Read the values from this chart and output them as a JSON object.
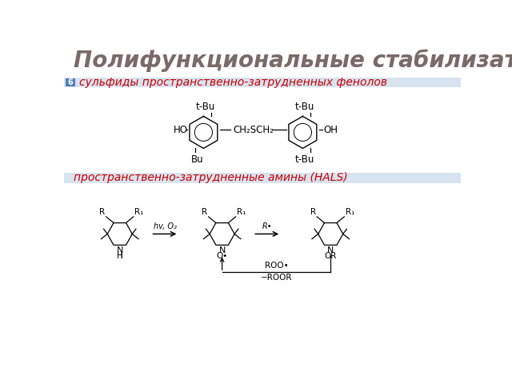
{
  "title": "Полифункциональные стабилизаторы",
  "title_color": "#7a6a6a",
  "title_fontsize": 20,
  "title_style": "italic",
  "subtitle1": "сульфиды пространственно-затрудненных фенолов",
  "subtitle1_color": "#cc0000",
  "subtitle1_fontsize": 10,
  "subtitle2": "пространственно-затрудненные амины (HALS)",
  "subtitle2_color": "#cc0000",
  "subtitle2_fontsize": 10,
  "slide_number": "6",
  "accent_color": "#4f81bd",
  "background_color": "#ffffff"
}
